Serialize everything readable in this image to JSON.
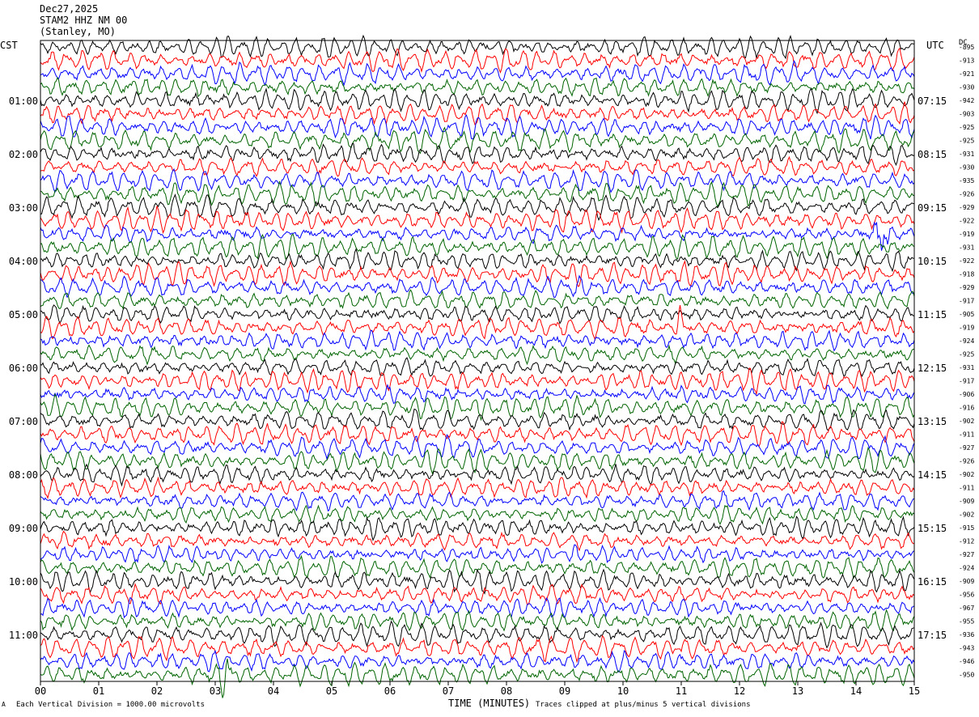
{
  "header": {
    "date": "Dec27,2025",
    "station": "STAM2 HHZ NM 00",
    "location": "(Stanley, MO)"
  },
  "labels": {
    "left_tz": "CST",
    "right_tz": "UTC",
    "dc": "DC"
  },
  "footer": {
    "vertical_division": "Each Vertical Division = 1000.00 microvolts",
    "clipping": "Traces clipped at plus/minus 5 vertical divisions",
    "corner_mark": "A"
  },
  "chart_data": {
    "type": "line",
    "title": "",
    "xlabel": "TIME (MINUTES)",
    "ylabel": "",
    "xlim": [
      0,
      15
    ],
    "x_ticks": [
      "00",
      "01",
      "02",
      "03",
      "04",
      "05",
      "06",
      "07",
      "08",
      "09",
      "10",
      "11",
      "12",
      "13",
      "14",
      "15"
    ],
    "rows_per_hour": 4,
    "series_colors": [
      "#000000",
      "#ff0000",
      "#0000ff",
      "#006400"
    ],
    "left_hour_labels": [
      "01:00",
      "02:00",
      "03:00",
      "04:00",
      "05:00",
      "06:00",
      "07:00",
      "08:00",
      "09:00",
      "10:00",
      "11:00"
    ],
    "right_hour_labels": [
      "07:15",
      "08:15",
      "09:15",
      "10:15",
      "11:15",
      "12:15",
      "13:15",
      "14:15",
      "15:15",
      "16:15",
      "17:15"
    ],
    "dc_offsets": [
      "-895",
      "-913",
      "-921",
      "-930",
      "-942",
      "-903",
      "-925",
      "-925",
      "-931",
      "-930",
      "-935",
      "-926",
      "-929",
      "-922",
      "-919",
      "-931",
      "-922",
      "-918",
      "-929",
      "-917",
      "-905",
      "-919",
      "-924",
      "-925",
      "-931",
      "-917",
      "-906",
      "-916",
      "-902",
      "-911",
      "-927",
      "-926",
      "-902",
      "-911",
      "-909",
      "-902",
      "-915",
      "-912",
      "-927",
      "-924",
      "-909",
      "-956",
      "-967",
      "-955",
      "-936",
      "-943",
      "-946",
      "-950"
    ],
    "events": [
      {
        "trace_index": 47,
        "minute_start": 3.05,
        "minute_end": 3.55,
        "description": "large clipped burst"
      },
      {
        "trace_index": 21,
        "minute_start": 10.9,
        "minute_end": 11.2,
        "description": "local burst"
      },
      {
        "trace_index": 14,
        "minute_start": 14.3,
        "minute_end": 14.9,
        "description": "local burst"
      }
    ]
  }
}
